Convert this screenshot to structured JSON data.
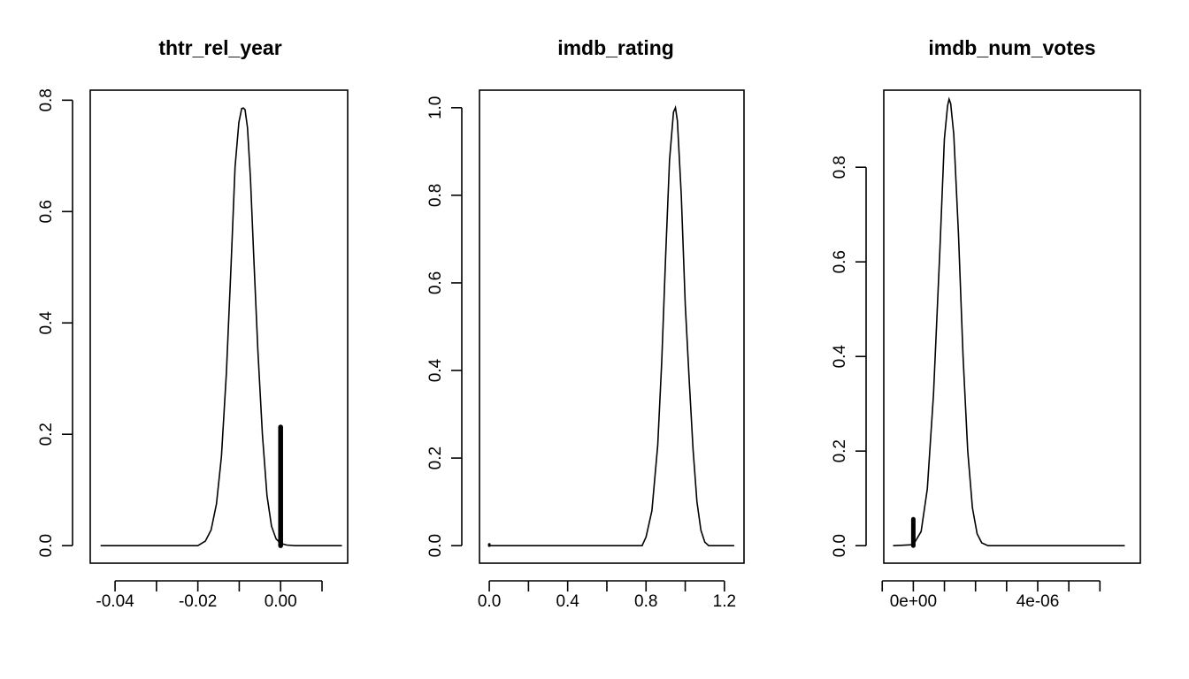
{
  "chart_data": [
    {
      "type": "line",
      "title": "thtr_rel_year",
      "xlabel": "",
      "ylabel": "",
      "xlim": [
        -0.046,
        0.0162
      ],
      "ylim": [
        -0.0315,
        0.818
      ],
      "x_ticks": [
        -0.04,
        -0.03,
        -0.02,
        -0.01,
        0.0,
        0.01
      ],
      "x_tick_labels": [
        {
          "value": -0.04,
          "label": "-0.04"
        },
        {
          "value": -0.02,
          "label": "-0.02"
        },
        {
          "value": 0.0,
          "label": "0.00"
        }
      ],
      "y_ticks": [
        {
          "value": 0.0,
          "label": "0.0"
        },
        {
          "value": 0.2,
          "label": "0.2"
        },
        {
          "value": 0.4,
          "label": "0.4"
        },
        {
          "value": 0.6,
          "label": "0.6"
        },
        {
          "value": 0.8,
          "label": "0.8"
        }
      ],
      "series": [
        {
          "kind": "density",
          "x": [
            -0.0435,
            -0.02,
            -0.0182,
            -0.0168,
            -0.0155,
            -0.0143,
            -0.0131,
            -0.012,
            -0.011,
            -0.0101,
            -0.0094,
            -0.009,
            -0.0086,
            -0.008,
            -0.0073,
            -0.0065,
            -0.0055,
            -0.0044,
            -0.0033,
            -0.0022,
            -0.0011,
            0.0,
            0.0015,
            0.0035,
            0.0148
          ],
          "y": [
            0.0,
            0.0,
            0.008,
            0.028,
            0.075,
            0.16,
            0.31,
            0.5,
            0.68,
            0.76,
            0.785,
            0.786,
            0.783,
            0.75,
            0.66,
            0.52,
            0.35,
            0.2,
            0.09,
            0.035,
            0.012,
            0.004,
            0.001,
            0.0,
            0.0
          ]
        },
        {
          "kind": "spike",
          "x": 0.0,
          "y": [
            0.0,
            0.213
          ]
        }
      ]
    },
    {
      "type": "line",
      "title": "imdb_rating",
      "xlabel": "",
      "ylabel": "",
      "xlim": [
        -0.05,
        1.3
      ],
      "ylim": [
        -0.04,
        1.04
      ],
      "x_ticks": [
        0.0,
        0.2,
        0.4,
        0.6,
        0.8,
        1.0,
        1.2
      ],
      "x_tick_labels": [
        {
          "value": 0.0,
          "label": "0.0"
        },
        {
          "value": 0.4,
          "label": "0.4"
        },
        {
          "value": 0.8,
          "label": "0.8"
        },
        {
          "value": 1.2,
          "label": "1.2"
        }
      ],
      "y_ticks": [
        {
          "value": 0.0,
          "label": "0.0"
        },
        {
          "value": 0.2,
          "label": "0.2"
        },
        {
          "value": 0.4,
          "label": "0.4"
        },
        {
          "value": 0.6,
          "label": "0.6"
        },
        {
          "value": 0.8,
          "label": "0.8"
        },
        {
          "value": 1.0,
          "label": "1.0"
        }
      ],
      "series": [
        {
          "kind": "density",
          "x": [
            0.0,
            0.78,
            0.8,
            0.83,
            0.86,
            0.88,
            0.9,
            0.92,
            0.94,
            0.95,
            0.96,
            0.98,
            1.0,
            1.02,
            1.04,
            1.06,
            1.08,
            1.1,
            1.12,
            1.25
          ],
          "y": [
            0.0,
            0.0,
            0.02,
            0.08,
            0.23,
            0.42,
            0.66,
            0.88,
            0.99,
            1.0,
            0.97,
            0.8,
            0.55,
            0.38,
            0.22,
            0.1,
            0.035,
            0.008,
            0.0,
            0.0
          ]
        },
        {
          "kind": "spike",
          "x": 0.0,
          "y": [
            0.0,
            0.003
          ]
        }
      ]
    },
    {
      "type": "line",
      "title": "imdb_num_votes",
      "xlabel": "",
      "ylabel": "",
      "xlim": [
        -9.5e-07,
        7.3e-06
      ],
      "ylim": [
        -0.037,
        0.963
      ],
      "x_ticks": [
        -1e-06,
        0.0,
        1e-06,
        2e-06,
        3e-06,
        4e-06,
        5e-06,
        6e-06
      ],
      "x_tick_labels": [
        {
          "value": 0.0,
          "label": "0e+00"
        },
        {
          "value": 4e-06,
          "label": "4e-06"
        }
      ],
      "y_ticks": [
        {
          "value": 0.0,
          "label": "0.0"
        },
        {
          "value": 0.2,
          "label": "0.2"
        },
        {
          "value": 0.4,
          "label": "0.4"
        },
        {
          "value": 0.6,
          "label": "0.6"
        },
        {
          "value": 0.8,
          "label": "0.8"
        }
      ],
      "series": [
        {
          "kind": "density",
          "x": [
            -6.5e-07,
            0.0,
            2.5e-07,
            4.5e-07,
            6.5e-07,
            8.5e-07,
            1e-06,
            1.1e-06,
            1.15e-06,
            1.2e-06,
            1.3e-06,
            1.45e-06,
            1.6e-06,
            1.75e-06,
            1.9e-06,
            2.05e-06,
            2.2e-06,
            2.4e-06,
            6.8e-06
          ],
          "y": [
            0.0,
            0.002,
            0.03,
            0.12,
            0.32,
            0.62,
            0.86,
            0.93,
            0.944,
            0.935,
            0.87,
            0.66,
            0.4,
            0.2,
            0.08,
            0.025,
            0.006,
            0.0,
            0.0
          ]
        },
        {
          "kind": "spike",
          "x": 0.0,
          "y": [
            0.0,
            0.056
          ]
        }
      ]
    }
  ]
}
